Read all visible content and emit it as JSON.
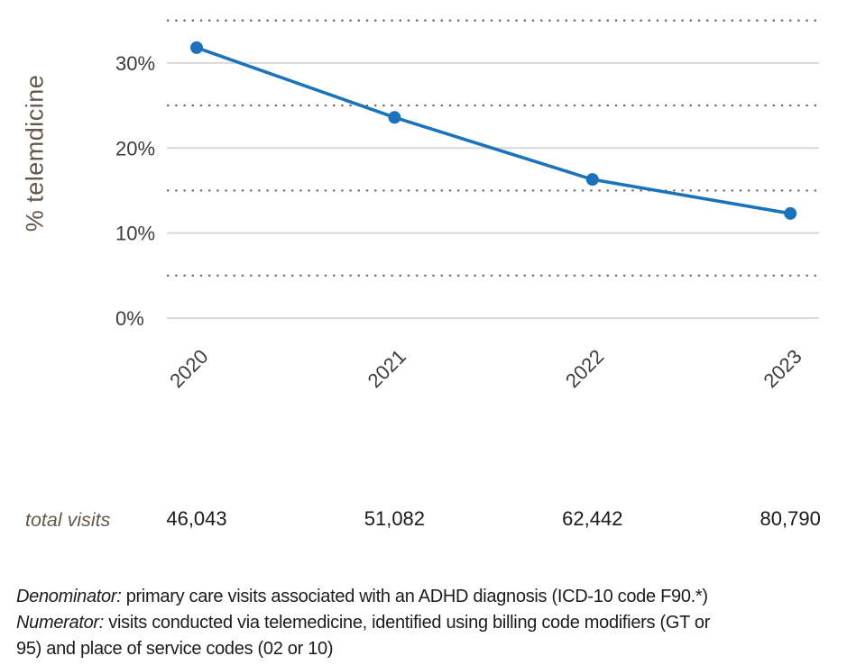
{
  "colors": {
    "accent_blue": "#1c73b9",
    "axis_title_brown": "#65584a",
    "major_gridline_gray": "#d9d9d9",
    "minor_dotted_gray": "#6e6e6e",
    "tick_text_gray": "#3d3d3d"
  },
  "chart_data": {
    "type": "line",
    "title": "",
    "x": [
      "2020",
      "2021",
      "2022",
      "2023"
    ],
    "series": [
      {
        "name": "% telemdicine",
        "values": [
          31.8,
          23.6,
          16.3,
          12.3
        ]
      }
    ],
    "ylabel": "% telemdicine",
    "xlabel": "",
    "ylim": [
      0,
      35.5
    ],
    "yticks": [
      {
        "value": 0,
        "label": "0%"
      },
      {
        "value": 10,
        "label": "10%"
      },
      {
        "value": 20,
        "label": "20%"
      },
      {
        "value": 30,
        "label": "30%"
      }
    ],
    "minor_gridlines": [
      5,
      15,
      25,
      35
    ],
    "grid": "horizontal: solid light-gray at major ticks, dotted dark-gray at minor ticks",
    "legend": "none",
    "line_color": "#1c73b9",
    "marker": "filled-circle"
  },
  "totals": {
    "label": "total visits",
    "values": [
      "46,043",
      "51,082",
      "62,442",
      "80,790"
    ]
  },
  "footnote": {
    "lines": [
      {
        "lead": "Denominator:",
        "rest": " primary care visits associated with an ADHD diagnosis (ICD-10 code F90.*)"
      },
      {
        "lead": "Numerator:",
        "rest": " visits conducted via telemedicine, identified using billing code modifiers (GT or"
      },
      {
        "lead": "",
        "rest": "95) and place of service codes (02 or 10)"
      }
    ]
  }
}
